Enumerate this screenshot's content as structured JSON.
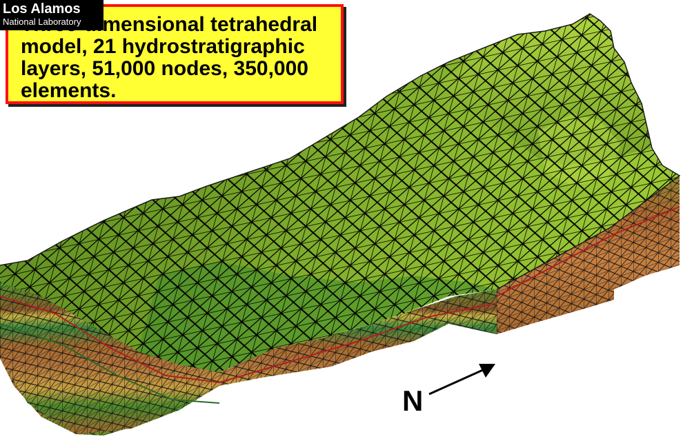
{
  "logo": {
    "line1": "Los Alamos",
    "line2": "National Laboratory"
  },
  "caption": {
    "text": "Three-dimensional tetrahedral\nmodel, 21 hydrostratigraphic\nlayers, 51,000 nodes, 350,000\nelements."
  },
  "compass": {
    "label": "N"
  },
  "colors": {
    "caption_background": "#ffff33",
    "caption_border": "#ff1010",
    "terrain_light": "#a8d43a",
    "terrain_dark": "#4a7a1c",
    "side_brown": "#a86a2e",
    "side_green": "#3a8a3a",
    "side_yellow": "#c8b040",
    "mesh_lines": "#000000"
  }
}
